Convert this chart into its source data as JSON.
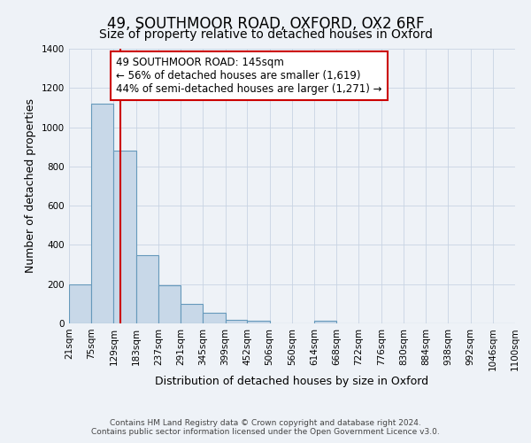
{
  "title": "49, SOUTHMOOR ROAD, OXFORD, OX2 6RF",
  "subtitle": "Size of property relative to detached houses in Oxford",
  "xlabel": "Distribution of detached houses by size in Oxford",
  "ylabel": "Number of detached properties",
  "bin_edges": [
    21,
    75,
    129,
    183,
    237,
    291,
    345,
    399,
    452,
    506,
    560,
    614,
    668,
    722,
    776,
    830,
    884,
    938,
    992,
    1046,
    1100
  ],
  "bin_labels": [
    "21sqm",
    "75sqm",
    "129sqm",
    "183sqm",
    "237sqm",
    "291sqm",
    "345sqm",
    "399sqm",
    "452sqm",
    "506sqm",
    "560sqm",
    "614sqm",
    "668sqm",
    "722sqm",
    "776sqm",
    "830sqm",
    "884sqm",
    "938sqm",
    "992sqm",
    "1046sqm",
    "1100sqm"
  ],
  "counts": [
    200,
    1120,
    880,
    350,
    195,
    100,
    55,
    20,
    12,
    0,
    0,
    12,
    0,
    0,
    0,
    0,
    0,
    0,
    0,
    0
  ],
  "bar_color": "#c8d8e8",
  "bar_edge_color": "#6699bb",
  "vline_x": 145,
  "vline_color": "#cc0000",
  "annotation_line1": "49 SOUTHMOOR ROAD: 145sqm",
  "annotation_line2": "← 56% of detached houses are smaller (1,619)",
  "annotation_line3": "44% of semi-detached houses are larger (1,271) →",
  "annotation_bbox_color": "#ffffff",
  "annotation_bbox_edge": "#cc0000",
  "ylim": [
    0,
    1400
  ],
  "yticks": [
    0,
    200,
    400,
    600,
    800,
    1000,
    1200,
    1400
  ],
  "footer_line1": "Contains HM Land Registry data © Crown copyright and database right 2024.",
  "footer_line2": "Contains public sector information licensed under the Open Government Licence v3.0.",
  "title_fontsize": 12,
  "subtitle_fontsize": 10,
  "axis_label_fontsize": 9,
  "tick_fontsize": 7.5,
  "annotation_fontsize": 8.5,
  "footer_fontsize": 6.5,
  "background_color": "#eef2f7"
}
